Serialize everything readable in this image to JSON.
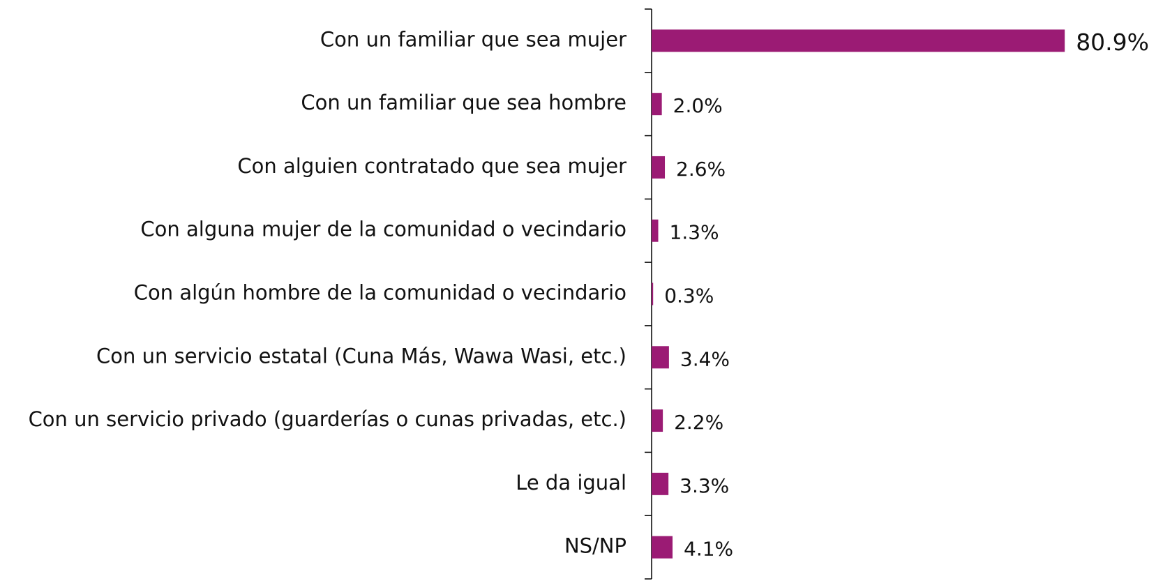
{
  "chart_data": {
    "type": "bar",
    "orientation": "horizontal",
    "categories": [
      "Con un familiar que sea mujer",
      "Con un familiar que sea hombre",
      "Con alguien contratado que sea mujer",
      "Con alguna mujer de la comunidad o vecindario",
      "Con algún hombre de la comunidad o vecindario",
      "Con un servicio estatal (Cuna Más, Wawa Wasi, etc.)",
      "Con un servicio privado (guarderías o cunas privadas, etc.)",
      "Le da igual",
      "NS/NP"
    ],
    "values": [
      80.9,
      2.0,
      2.6,
      1.3,
      0.3,
      3.4,
      2.2,
      3.3,
      4.1
    ],
    "value_labels": [
      "80.9%",
      "2.0%",
      "2.6%",
      "1.3%",
      "0.3%",
      "3.4%",
      "2.2%",
      "3.3%",
      "4.1%"
    ],
    "color": "#9b1b74"
  }
}
